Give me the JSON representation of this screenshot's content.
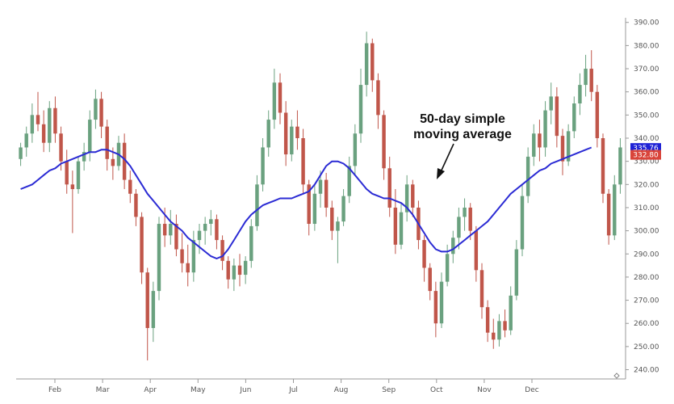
{
  "chart_data": {
    "type": "candlestick",
    "title": "",
    "xlabel": "",
    "ylabel": "",
    "ylim": [
      236,
      392
    ],
    "grid": false,
    "x_tick_labels": [
      "Feb",
      "Mar",
      "Apr",
      "May",
      "Jun",
      "Jul",
      "Aug",
      "Sep",
      "Oct",
      "Nov",
      "Dec"
    ],
    "y_tick_values": [
      240,
      250,
      260,
      270,
      280,
      290,
      300,
      310,
      320,
      330,
      340,
      350,
      360,
      370,
      380,
      390
    ],
    "y_tick_labels": [
      "240.00",
      "250.00",
      "260.00",
      "270.00",
      "280.00",
      "290.00",
      "300.00",
      "310.00",
      "320.00",
      "330.00",
      "340.00",
      "350.00",
      "360.00",
      "370.00",
      "380.00",
      "390.00"
    ],
    "price_tags": [
      {
        "label": "335.76",
        "value": 335.76,
        "color": "#1e22d6"
      },
      {
        "label": "332.80",
        "value": 332.8,
        "color": "#d9443a"
      }
    ],
    "annotation": {
      "lines": [
        "50-day simple",
        "moving average"
      ]
    },
    "colors": {
      "up": "#6aa17f",
      "down": "#c0564a",
      "ma": "#2b2bd4",
      "axis": "#999999"
    },
    "ohlc": [
      {
        "o": 331,
        "h": 338,
        "l": 328,
        "c": 336
      },
      {
        "o": 336,
        "h": 345,
        "l": 332,
        "c": 342
      },
      {
        "o": 342,
        "h": 355,
        "l": 338,
        "c": 350
      },
      {
        "o": 350,
        "h": 360,
        "l": 343,
        "c": 346
      },
      {
        "o": 346,
        "h": 352,
        "l": 334,
        "c": 338
      },
      {
        "o": 338,
        "h": 356,
        "l": 334,
        "c": 353
      },
      {
        "o": 353,
        "h": 358,
        "l": 338,
        "c": 342
      },
      {
        "o": 342,
        "h": 345,
        "l": 326,
        "c": 330
      },
      {
        "o": 330,
        "h": 335,
        "l": 316,
        "c": 320
      },
      {
        "o": 320,
        "h": 326,
        "l": 299,
        "c": 318
      },
      {
        "o": 318,
        "h": 332,
        "l": 316,
        "c": 330
      },
      {
        "o": 330,
        "h": 338,
        "l": 326,
        "c": 334
      },
      {
        "o": 334,
        "h": 352,
        "l": 330,
        "c": 348
      },
      {
        "o": 348,
        "h": 361,
        "l": 344,
        "c": 357
      },
      {
        "o": 357,
        "h": 360,
        "l": 340,
        "c": 345
      },
      {
        "o": 345,
        "h": 348,
        "l": 326,
        "c": 331
      },
      {
        "o": 331,
        "h": 336,
        "l": 322,
        "c": 328
      },
      {
        "o": 328,
        "h": 341,
        "l": 326,
        "c": 338
      },
      {
        "o": 338,
        "h": 342,
        "l": 318,
        "c": 322
      },
      {
        "o": 322,
        "h": 326,
        "l": 312,
        "c": 316
      },
      {
        "o": 316,
        "h": 318,
        "l": 302,
        "c": 306
      },
      {
        "o": 306,
        "h": 308,
        "l": 277,
        "c": 282
      },
      {
        "o": 282,
        "h": 284,
        "l": 244,
        "c": 258
      },
      {
        "o": 258,
        "h": 278,
        "l": 252,
        "c": 274
      },
      {
        "o": 274,
        "h": 306,
        "l": 270,
        "c": 303
      },
      {
        "o": 303,
        "h": 310,
        "l": 293,
        "c": 298
      },
      {
        "o": 298,
        "h": 309,
        "l": 294,
        "c": 303
      },
      {
        "o": 303,
        "h": 307,
        "l": 289,
        "c": 292
      },
      {
        "o": 292,
        "h": 299,
        "l": 282,
        "c": 286
      },
      {
        "o": 286,
        "h": 294,
        "l": 276,
        "c": 282
      },
      {
        "o": 282,
        "h": 300,
        "l": 278,
        "c": 296
      },
      {
        "o": 296,
        "h": 303,
        "l": 290,
        "c": 300
      },
      {
        "o": 300,
        "h": 306,
        "l": 294,
        "c": 303
      },
      {
        "o": 303,
        "h": 309,
        "l": 298,
        "c": 305
      },
      {
        "o": 305,
        "h": 307,
        "l": 292,
        "c": 296
      },
      {
        "o": 296,
        "h": 298,
        "l": 283,
        "c": 287
      },
      {
        "o": 287,
        "h": 289,
        "l": 275,
        "c": 279
      },
      {
        "o": 279,
        "h": 288,
        "l": 274,
        "c": 285
      },
      {
        "o": 285,
        "h": 290,
        "l": 276,
        "c": 281
      },
      {
        "o": 281,
        "h": 289,
        "l": 277,
        "c": 287
      },
      {
        "o": 287,
        "h": 305,
        "l": 284,
        "c": 302
      },
      {
        "o": 302,
        "h": 324,
        "l": 300,
        "c": 320
      },
      {
        "o": 320,
        "h": 340,
        "l": 317,
        "c": 336
      },
      {
        "o": 336,
        "h": 352,
        "l": 332,
        "c": 348
      },
      {
        "o": 348,
        "h": 370,
        "l": 344,
        "c": 364
      },
      {
        "o": 364,
        "h": 368,
        "l": 346,
        "c": 351
      },
      {
        "o": 351,
        "h": 356,
        "l": 328,
        "c": 333
      },
      {
        "o": 333,
        "h": 348,
        "l": 330,
        "c": 345
      },
      {
        "o": 345,
        "h": 352,
        "l": 335,
        "c": 340
      },
      {
        "o": 340,
        "h": 344,
        "l": 316,
        "c": 320
      },
      {
        "o": 320,
        "h": 322,
        "l": 298,
        "c": 303
      },
      {
        "o": 303,
        "h": 320,
        "l": 300,
        "c": 316
      },
      {
        "o": 316,
        "h": 326,
        "l": 310,
        "c": 322
      },
      {
        "o": 322,
        "h": 325,
        "l": 306,
        "c": 310
      },
      {
        "o": 310,
        "h": 313,
        "l": 296,
        "c": 300
      },
      {
        "o": 300,
        "h": 306,
        "l": 286,
        "c": 304
      },
      {
        "o": 304,
        "h": 318,
        "l": 302,
        "c": 315
      },
      {
        "o": 315,
        "h": 332,
        "l": 312,
        "c": 328
      },
      {
        "o": 328,
        "h": 346,
        "l": 324,
        "c": 342
      },
      {
        "o": 342,
        "h": 370,
        "l": 338,
        "c": 363
      },
      {
        "o": 363,
        "h": 386,
        "l": 358,
        "c": 381
      },
      {
        "o": 381,
        "h": 383,
        "l": 360,
        "c": 365
      },
      {
        "o": 365,
        "h": 368,
        "l": 344,
        "c": 350
      },
      {
        "o": 350,
        "h": 352,
        "l": 322,
        "c": 327
      },
      {
        "o": 327,
        "h": 332,
        "l": 306,
        "c": 310
      },
      {
        "o": 310,
        "h": 318,
        "l": 290,
        "c": 294
      },
      {
        "o": 294,
        "h": 312,
        "l": 292,
        "c": 308
      },
      {
        "o": 308,
        "h": 324,
        "l": 304,
        "c": 320
      },
      {
        "o": 320,
        "h": 322,
        "l": 306,
        "c": 310
      },
      {
        "o": 310,
        "h": 313,
        "l": 292,
        "c": 296
      },
      {
        "o": 296,
        "h": 298,
        "l": 278,
        "c": 284
      },
      {
        "o": 284,
        "h": 286,
        "l": 270,
        "c": 274
      },
      {
        "o": 274,
        "h": 278,
        "l": 254,
        "c": 260
      },
      {
        "o": 260,
        "h": 282,
        "l": 258,
        "c": 278
      },
      {
        "o": 278,
        "h": 294,
        "l": 276,
        "c": 290
      },
      {
        "o": 290,
        "h": 300,
        "l": 286,
        "c": 297
      },
      {
        "o": 297,
        "h": 310,
        "l": 292,
        "c": 306
      },
      {
        "o": 306,
        "h": 314,
        "l": 300,
        "c": 310
      },
      {
        "o": 310,
        "h": 312,
        "l": 296,
        "c": 300
      },
      {
        "o": 300,
        "h": 302,
        "l": 278,
        "c": 283
      },
      {
        "o": 283,
        "h": 286,
        "l": 262,
        "c": 267
      },
      {
        "o": 267,
        "h": 270,
        "l": 252,
        "c": 256
      },
      {
        "o": 256,
        "h": 262,
        "l": 249,
        "c": 253
      },
      {
        "o": 253,
        "h": 264,
        "l": 250,
        "c": 261
      },
      {
        "o": 261,
        "h": 266,
        "l": 254,
        "c": 257
      },
      {
        "o": 257,
        "h": 276,
        "l": 255,
        "c": 272
      },
      {
        "o": 272,
        "h": 296,
        "l": 270,
        "c": 292
      },
      {
        "o": 292,
        "h": 320,
        "l": 289,
        "c": 315
      },
      {
        "o": 315,
        "h": 336,
        "l": 312,
        "c": 332
      },
      {
        "o": 332,
        "h": 346,
        "l": 328,
        "c": 342
      },
      {
        "o": 342,
        "h": 348,
        "l": 330,
        "c": 336
      },
      {
        "o": 336,
        "h": 356,
        "l": 332,
        "c": 352
      },
      {
        "o": 352,
        "h": 364,
        "l": 346,
        "c": 358
      },
      {
        "o": 358,
        "h": 362,
        "l": 336,
        "c": 341
      },
      {
        "o": 341,
        "h": 344,
        "l": 324,
        "c": 330
      },
      {
        "o": 330,
        "h": 346,
        "l": 328,
        "c": 343
      },
      {
        "o": 343,
        "h": 358,
        "l": 340,
        "c": 355
      },
      {
        "o": 355,
        "h": 368,
        "l": 350,
        "c": 363
      },
      {
        "o": 363,
        "h": 376,
        "l": 358,
        "c": 370
      },
      {
        "o": 370,
        "h": 378,
        "l": 356,
        "c": 360
      },
      {
        "o": 360,
        "h": 363,
        "l": 336,
        "c": 340
      },
      {
        "o": 340,
        "h": 342,
        "l": 312,
        "c": 316
      },
      {
        "o": 316,
        "h": 318,
        "l": 294,
        "c": 298
      },
      {
        "o": 298,
        "h": 324,
        "l": 296,
        "c": 320
      },
      {
        "o": 320,
        "h": 340,
        "l": 316,
        "c": 336
      }
    ],
    "ma": [
      318,
      319,
      320,
      322,
      324,
      326,
      327,
      329,
      330,
      331,
      332,
      333,
      334,
      334,
      335,
      335,
      334,
      333,
      331,
      328,
      324,
      320,
      316,
      313,
      310,
      307,
      304,
      302,
      300,
      297,
      295,
      293,
      291,
      289,
      288,
      289,
      292,
      296,
      300,
      304,
      307,
      309,
      311,
      312,
      313,
      314,
      314,
      314,
      315,
      316,
      317,
      320,
      324,
      328,
      330,
      330,
      329,
      327,
      324,
      321,
      318,
      316,
      315,
      314,
      314,
      313,
      312,
      310,
      307,
      303,
      299,
      295,
      292,
      291,
      291,
      292,
      294,
      296,
      298,
      300,
      302,
      304,
      307,
      310,
      313,
      316,
      318,
      320,
      322,
      324,
      326,
      327,
      329,
      330,
      331,
      332,
      333,
      334,
      335,
      336
    ]
  }
}
